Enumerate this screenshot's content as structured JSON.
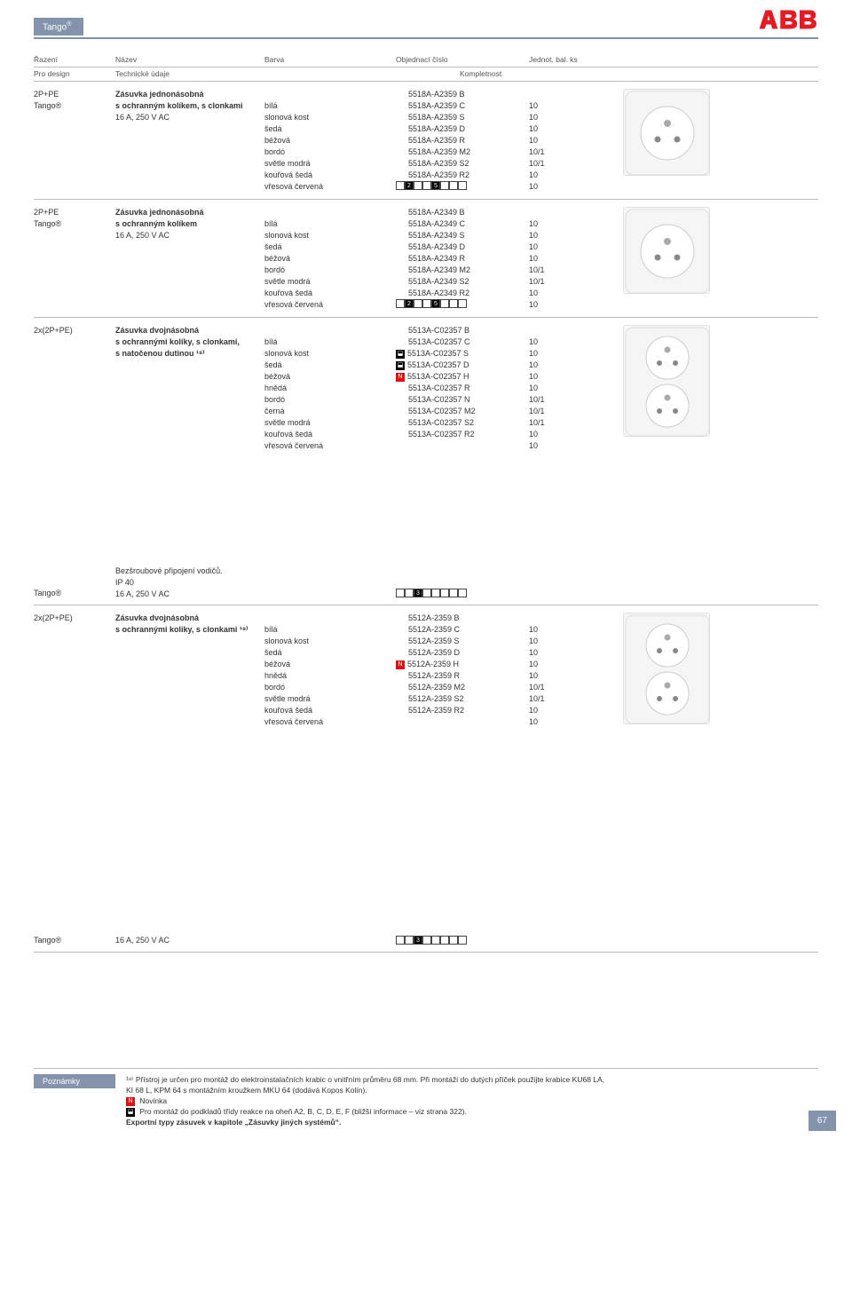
{
  "brandTab": "Tango",
  "brandSup": "®",
  "logoColor": "#e31b23",
  "colHead": {
    "c1": "Řazení",
    "c2": "Název",
    "c3": "Barva",
    "c4": "Objednací číslo",
    "c5": "Jednot. bal. ks"
  },
  "subHead": {
    "c1": "Pro design",
    "c2": "Technické údaje",
    "c3": "Kompletnost"
  },
  "blocks": [
    {
      "left": [
        "2P+PE",
        "",
        "",
        "",
        "",
        "",
        "",
        "",
        "",
        "Tango®"
      ],
      "mid": [
        "Zásuvka jednonásobná",
        "s ochranným kolíkem, s clonkami",
        "",
        "",
        "",
        "",
        "",
        "",
        "",
        "16 A, 250 V AC"
      ],
      "boldLines": 2,
      "colors": [
        "",
        "bílá",
        "slonová kost",
        "šedá",
        "béžová",
        "bordó",
        "světle modrá",
        "kouřová šedá",
        "vřesová červená"
      ],
      "parts": [
        [
          "",
          ""
        ],
        [
          "",
          "5518A-A2359 B"
        ],
        [
          "",
          "5518A-A2359 C"
        ],
        [
          "",
          "5518A-A2359 S"
        ],
        [
          "",
          "5518A-A2359 D"
        ],
        [
          "",
          "5518A-A2359 R"
        ],
        [
          "",
          "5518A-A2359 M2"
        ],
        [
          "",
          "5518A-A2359 S2"
        ],
        [
          "",
          "5518A-A2359 R2"
        ]
      ],
      "qty": [
        "",
        "10",
        "10",
        "10",
        "10",
        "10/1",
        "10/1",
        "10",
        "10"
      ],
      "boxes": [
        "",
        "2",
        "",
        "",
        "5",
        "",
        "",
        ""
      ],
      "imgType": "single"
    },
    {
      "left": [
        "2P+PE",
        "",
        "",
        "",
        "",
        "",
        "",
        "",
        "",
        "Tango®"
      ],
      "mid": [
        "Zásuvka jednonásobná",
        "s ochranným kolíkem",
        "",
        "",
        "",
        "",
        "",
        "",
        "",
        "16 A, 250 V AC"
      ],
      "boldLines": 2,
      "colors": [
        "",
        "bílá",
        "slonová kost",
        "šedá",
        "béžová",
        "bordó",
        "světle modrá",
        "kouřová šedá",
        "vřesová červená"
      ],
      "parts": [
        [
          "",
          ""
        ],
        [
          "",
          "5518A-A2349 B"
        ],
        [
          "",
          "5518A-A2349 C"
        ],
        [
          "",
          "5518A-A2349 S"
        ],
        [
          "",
          "5518A-A2349 D"
        ],
        [
          "",
          "5518A-A2349 R"
        ],
        [
          "",
          "5518A-A2349 M2"
        ],
        [
          "",
          "5518A-A2349 S2"
        ],
        [
          "",
          "5518A-A2349 R2"
        ]
      ],
      "qty": [
        "",
        "10",
        "10",
        "10",
        "10",
        "10/1",
        "10/1",
        "10",
        "10"
      ],
      "boxes": [
        "",
        "2",
        "",
        "",
        "5",
        "",
        "",
        ""
      ],
      "imgType": "single"
    },
    {
      "left": [
        "2x(2P+PE)",
        "",
        ""
      ],
      "mid": [
        "Zásuvka dvojnásobná",
        "s ochrannými kolíky, s clonkami,",
        "s natočenou dutinou ¹⁸⁾"
      ],
      "boldLines": 3,
      "colors": [
        "",
        "bílá",
        "slonová kost",
        "šedá",
        "béžová",
        "hnědá",
        "bordó",
        "černá",
        "světle modrá",
        "kouřová šedá",
        "vřesová červená"
      ],
      "parts": [
        [
          "",
          ""
        ],
        [
          "",
          "5513A-C02357 B"
        ],
        [
          "",
          "5513A-C02357 C"
        ],
        [
          "W",
          "5513A-C02357 S"
        ],
        [
          "W",
          "5513A-C02357 D"
        ],
        [
          "N",
          "5513A-C02357 H"
        ],
        [
          "",
          "5513A-C02357 R"
        ],
        [
          "",
          "5513A-C02357 N"
        ],
        [
          "",
          "5513A-C02357 M2"
        ],
        [
          "",
          "5513A-C02357 S2"
        ],
        [
          "",
          "5513A-C02357 R2"
        ]
      ],
      "qty": [
        "",
        "10",
        "10",
        "10",
        "10",
        "10",
        "10/1",
        "10/1",
        "10/1",
        "10",
        "10"
      ],
      "boxes": null,
      "imgType": "double"
    }
  ],
  "midHeader": {
    "left": [
      "",
      "",
      "Tango®"
    ],
    "mid": [
      "Bezšroubové připojení vodičů.",
      "IP 40",
      "16 A, 250 V AC"
    ],
    "boxes": [
      "",
      "",
      "3",
      "",
      "",
      "",
      "",
      ""
    ]
  },
  "block4": {
    "left": [
      "2x(2P+PE)",
      ""
    ],
    "mid": [
      "Zásuvka dvojnásobná",
      "s ochrannými kolíky, s clonkami ¹⁸⁾"
    ],
    "boldLines": 2,
    "colors": [
      "",
      "bílá",
      "slonová kost",
      "šedá",
      "béžová",
      "hnědá",
      "bordó",
      "světle modrá",
      "kouřová šedá",
      "vřesová červená"
    ],
    "parts": [
      [
        "",
        ""
      ],
      [
        "",
        "5512A-2359 B"
      ],
      [
        "",
        "5512A-2359 C"
      ],
      [
        "",
        "5512A-2359 S"
      ],
      [
        "",
        "5512A-2359 D"
      ],
      [
        "N",
        "5512A-2359 H"
      ],
      [
        "",
        "5512A-2359 R"
      ],
      [
        "",
        "5512A-2359 M2"
      ],
      [
        "",
        "5512A-2359 S2"
      ],
      [
        "",
        "5512A-2359 R2"
      ]
    ],
    "qty": [
      "",
      "10",
      "10",
      "10",
      "10",
      "10",
      "10/1",
      "10/1",
      "10",
      "10"
    ],
    "imgType": "double"
  },
  "bottomRow": {
    "left": "Tango®",
    "mid": "16 A, 250 V AC",
    "boxes": [
      "",
      "",
      "3",
      "",
      "",
      "",
      "",
      ""
    ]
  },
  "notes": {
    "label": "Poznámky",
    "lines": [
      "¹⁸⁾ Přístroj je určen pro montáž do elektroinstalačních krabic o vnitřním průměru 68 mm. Při montáži do dutých příček použijte krabice KU68 LA,",
      "     KI 68 L, KPM 64 s montážním kroužkem MKU 64 (dodává Kopos Kolín).",
      "[N] Novinka",
      "[W] Pro montáž do podkladů třídy reakce na oheň A2, B, C, D, E, F (bližší informace – viz strana 322).",
      "Exportní typy zásuvek v kapitole „Zásuvky jiných systémů“."
    ],
    "boldLine": 4
  },
  "pageNum": "67"
}
